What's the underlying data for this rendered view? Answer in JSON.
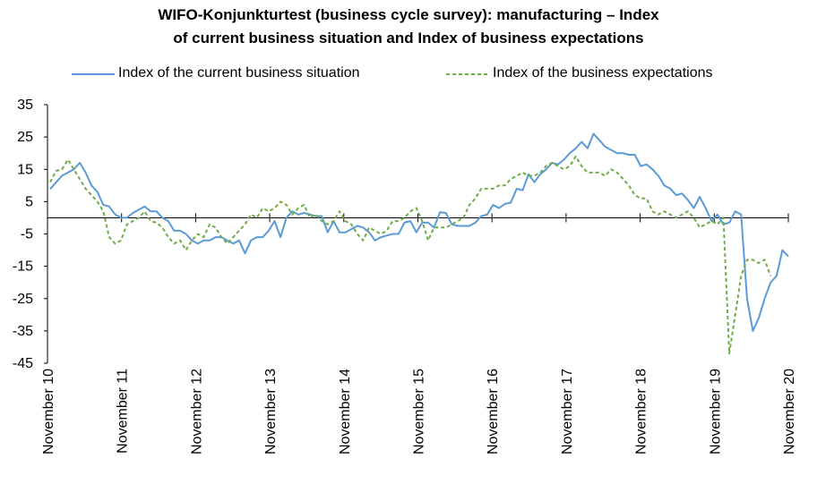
{
  "chart_data": {
    "type": "line",
    "title_line1": "WIFO-Konjunkturtest (business cycle survey): manufacturing – Index",
    "title_line2": "of current business situation and Index of business expectations",
    "xlabel": "",
    "ylabel": "",
    "ylim": [
      -45,
      35
    ],
    "y_ticks": [
      "35",
      "25",
      "15",
      "5",
      "-5",
      "-15",
      "-25",
      "-35",
      "-45"
    ],
    "x_tick_labels": [
      "November 10",
      "November 11",
      "November 12",
      "November 13",
      "November 14",
      "November 15",
      "November 16",
      "November 17",
      "November 18",
      "November 19",
      "November 20"
    ],
    "grid": false,
    "legend_position": "top",
    "series": [
      {
        "name": "Index of the current business situation",
        "color": "#5b9bd5",
        "style": "solid",
        "values": [
          8.9,
          11,
          13,
          14,
          15,
          17,
          14,
          10,
          8,
          4,
          3.5,
          1,
          0,
          0,
          1.5,
          2.5,
          3.5,
          2,
          2,
          0,
          -1,
          -4,
          -4,
          -5,
          -7,
          -8,
          -7,
          -7,
          -6,
          -6,
          -7,
          -8,
          -7,
          -11,
          -7,
          -6,
          -6,
          -4,
          -1,
          -6,
          0,
          2,
          1,
          1.5,
          1,
          0.5,
          0.5,
          -4.5,
          -1,
          -4.5,
          -4.5,
          -3.5,
          -2.5,
          -3,
          -4.5,
          -7,
          -6,
          -5.5,
          -5,
          -5,
          -1.5,
          -1,
          -4.5,
          -1.5,
          -1.5,
          -3,
          1.7,
          1.5,
          -2,
          -2.5,
          -2.5,
          -2.5,
          -1.5,
          0.5,
          1,
          4,
          3,
          4.3,
          4.7,
          9,
          8.5,
          13.5,
          11,
          13.5,
          15,
          17,
          16.5,
          18,
          20,
          21.5,
          23.5,
          21.5,
          26,
          24,
          22,
          21,
          20,
          20,
          19.5,
          19.5,
          16,
          16.5,
          15,
          13,
          10,
          9,
          7,
          7.5,
          5.5,
          3,
          6.5,
          3,
          -1,
          1,
          -2,
          -1.5,
          2,
          1,
          -25,
          -35,
          -31,
          -25,
          -20,
          -18,
          -10,
          -12
        ]
      },
      {
        "name": "Index of the business expectations",
        "color": "#70ad47",
        "style": "dashed",
        "values": [
          11,
          14.5,
          15,
          18,
          15,
          12,
          9,
          7,
          5,
          2,
          -6,
          -8,
          -7,
          -2,
          -1,
          0,
          2,
          -1,
          -1.5,
          -3,
          -6,
          -8,
          -7,
          -10,
          -7,
          -5,
          -6,
          -2,
          -3,
          -6,
          -8,
          -6,
          -4,
          -2,
          1,
          0,
          3,
          2,
          3,
          5,
          4,
          1,
          3,
          4,
          0,
          1,
          -1,
          -2,
          -1,
          2,
          -1,
          -2,
          -5,
          -7,
          -3,
          -4,
          -5,
          -4,
          -1,
          -1,
          0,
          2,
          3,
          -1,
          -7,
          -3,
          -3,
          -3,
          -2,
          -1,
          0,
          4,
          6,
          9,
          9,
          9,
          10,
          10,
          12,
          13,
          14,
          13,
          13,
          14,
          16,
          17,
          16,
          15,
          16,
          19,
          16,
          14,
          14,
          14,
          13,
          15,
          14,
          12,
          10,
          7,
          6,
          6,
          2,
          1,
          2,
          1,
          0,
          1,
          2,
          0,
          -3,
          -2,
          -1,
          -2,
          0,
          -42,
          -30,
          -18,
          -13,
          -13,
          -14,
          -13,
          -18
        ]
      }
    ]
  },
  "legend": {
    "series1_label": "Index of the current business situation",
    "series2_label": "Index of the business expectations"
  }
}
